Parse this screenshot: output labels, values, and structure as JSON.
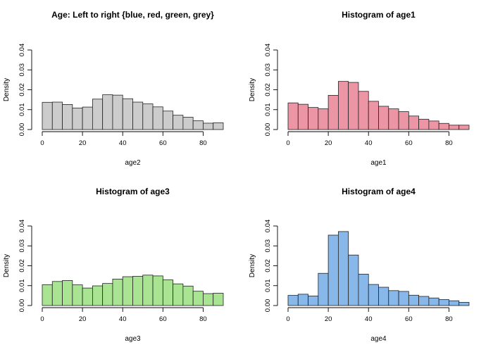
{
  "chart_data": [
    {
      "type": "bar",
      "title": "Age: Left to right {blue, red, green, grey}",
      "xlabel": "age2",
      "ylabel": "Density",
      "xlim": [
        0,
        90
      ],
      "ylim": [
        0,
        0.04
      ],
      "xticks": [
        "0",
        "20",
        "40",
        "60",
        "80"
      ],
      "yticks": [
        "0.00",
        "0.01",
        "0.02",
        "0.03",
        "0.04"
      ],
      "bin_width": 5,
      "bin_starts": [
        0,
        5,
        10,
        15,
        20,
        25,
        30,
        35,
        40,
        45,
        50,
        55,
        60,
        65,
        70,
        75,
        80,
        85
      ],
      "values": [
        0.0137,
        0.0138,
        0.0126,
        0.0108,
        0.0113,
        0.0153,
        0.0175,
        0.0173,
        0.0155,
        0.0138,
        0.0129,
        0.0114,
        0.0093,
        0.0072,
        0.0062,
        0.0044,
        0.0032,
        0.0034
      ],
      "color": "#cccccc"
    },
    {
      "type": "bar",
      "title": "Histogram of age1",
      "xlabel": "age1",
      "ylabel": "Density",
      "xlim": [
        0,
        90
      ],
      "ylim": [
        0,
        0.04
      ],
      "xticks": [
        "0",
        "20",
        "40",
        "60",
        "80"
      ],
      "yticks": [
        "0.00",
        "0.01",
        "0.02",
        "0.03",
        "0.04"
      ],
      "bin_width": 5,
      "bin_starts": [
        0,
        5,
        10,
        15,
        20,
        25,
        30,
        35,
        40,
        45,
        50,
        55,
        60,
        65,
        70,
        75,
        80,
        85
      ],
      "values": [
        0.0134,
        0.0127,
        0.0111,
        0.0104,
        0.0172,
        0.0242,
        0.0237,
        0.0192,
        0.0142,
        0.0117,
        0.0104,
        0.009,
        0.0068,
        0.0052,
        0.0043,
        0.0031,
        0.0022,
        0.0022
      ],
      "color": "#ec95a5"
    },
    {
      "type": "bar",
      "title": "Histogram of age3",
      "xlabel": "age3",
      "ylabel": "Density",
      "xlim": [
        0,
        90
      ],
      "ylim": [
        0,
        0.04
      ],
      "xticks": [
        "0",
        "20",
        "40",
        "60",
        "80"
      ],
      "yticks": [
        "0.00",
        "0.01",
        "0.02",
        "0.03",
        "0.04"
      ],
      "bin_width": 5,
      "bin_starts": [
        0,
        5,
        10,
        15,
        20,
        25,
        30,
        35,
        40,
        45,
        50,
        55,
        60,
        65,
        70,
        75,
        80,
        85
      ],
      "values": [
        0.0105,
        0.0121,
        0.0126,
        0.0104,
        0.0088,
        0.0099,
        0.0111,
        0.0133,
        0.0145,
        0.0147,
        0.0153,
        0.0149,
        0.0129,
        0.0109,
        0.0098,
        0.0072,
        0.006,
        0.0062
      ],
      "color": "#a8e492"
    },
    {
      "type": "bar",
      "title": "Histogram of age4",
      "xlabel": "age4",
      "ylabel": "Density",
      "xlim": [
        0,
        90
      ],
      "ylim": [
        0,
        0.04
      ],
      "xticks": [
        "0",
        "20",
        "40",
        "60",
        "80"
      ],
      "yticks": [
        "0.00",
        "0.01",
        "0.02",
        "0.03",
        "0.04"
      ],
      "bin_width": 5,
      "bin_starts": [
        0,
        5,
        10,
        15,
        20,
        25,
        30,
        35,
        40,
        45,
        50,
        55,
        60,
        65,
        70,
        75,
        80,
        85
      ],
      "values": [
        0.0051,
        0.0057,
        0.0048,
        0.0162,
        0.0354,
        0.0372,
        0.0254,
        0.0158,
        0.0106,
        0.0092,
        0.0075,
        0.0071,
        0.0052,
        0.0046,
        0.0038,
        0.003,
        0.0024,
        0.0016
      ],
      "color": "#88b8ea"
    }
  ]
}
